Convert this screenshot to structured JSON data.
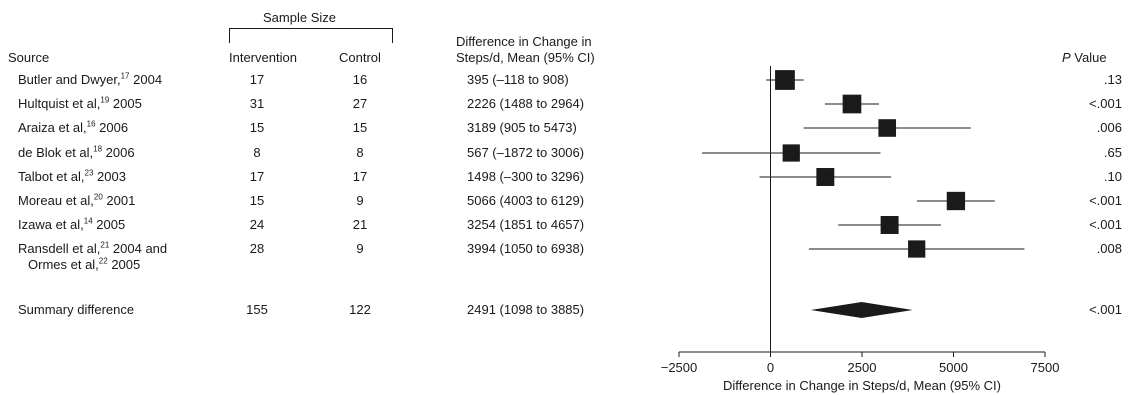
{
  "headers": {
    "sample_size": "Sample Size",
    "source": "Source",
    "intervention": "Intervention",
    "control": "Control",
    "diff_line1": "Difference in Change in",
    "diff_line2": "Steps/d, Mean (95% CI)",
    "p_italic": "P",
    "p_rest": " Value"
  },
  "rows": [
    {
      "name": "Butler and Dwyer,",
      "ref": "17",
      "year": " 2004",
      "intervention": "17",
      "control": "16",
      "diff_text": "395 (–118 to 908)",
      "p": ".13"
    },
    {
      "name": "Hultquist et al,",
      "ref": "19",
      "year": " 2005",
      "intervention": "31",
      "control": "27",
      "diff_text": "2226 (1488 to 2964)",
      "p": "<.001"
    },
    {
      "name": "Araiza et al,",
      "ref": "16",
      "year": " 2006",
      "intervention": "15",
      "control": "15",
      "diff_text": "3189 (905 to 5473)",
      "p": ".006"
    },
    {
      "name": "de Blok et al,",
      "ref": "18",
      "year": " 2006",
      "intervention": "8",
      "control": "8",
      "diff_text": "567 (–1872 to 3006)",
      "p": ".65"
    },
    {
      "name": "Talbot et al,",
      "ref": "23",
      "year": " 2003",
      "intervention": "17",
      "control": "17",
      "diff_text": "1498 (–300 to 3296)",
      "p": ".10"
    },
    {
      "name": "Moreau et al,",
      "ref": "20",
      "year": " 2001",
      "intervention": "15",
      "control": "9",
      "diff_text": "5066 (4003 to 6129)",
      "p": "<.001"
    },
    {
      "name": "Izawa et al,",
      "ref": "14",
      "year": " 2005",
      "intervention": "24",
      "control": "21",
      "diff_text": "3254 (1851 to 4657)",
      "p": "<.001"
    },
    {
      "name": "Ransdell et al,",
      "ref": "21",
      "year": " 2004 and",
      "name2": "Ormes et al,",
      "ref2": "22",
      "year2": " 2005",
      "intervention": "28",
      "control": "9",
      "diff_text": "3994 (1050 to 6938)",
      "p": ".008"
    }
  ],
  "summary": {
    "label": "Summary difference",
    "intervention": "155",
    "control": "122",
    "diff_text": "2491 (1098 to 3885)",
    "p": "<.001"
  },
  "chart_data": {
    "type": "forest",
    "xlabel": "Difference in Change in Steps/d, Mean (95% CI)",
    "xlim": [
      -2500,
      7500
    ],
    "xticks": [
      -2500,
      0,
      2500,
      5000,
      7500
    ],
    "xtick_labels": [
      "−2500",
      "0",
      "2500",
      "5000",
      "7500"
    ],
    "studies": [
      {
        "mean": 395,
        "lower": -118,
        "upper": 908,
        "weight": 16
      },
      {
        "mean": 2226,
        "lower": 1488,
        "upper": 2964,
        "weight": 13
      },
      {
        "mean": 3189,
        "lower": 905,
        "upper": 5473,
        "weight": 10
      },
      {
        "mean": 567,
        "lower": -1872,
        "upper": 3006,
        "weight": 9
      },
      {
        "mean": 1498,
        "lower": -300,
        "upper": 3296,
        "weight": 11
      },
      {
        "mean": 5066,
        "lower": 4003,
        "upper": 6129,
        "weight": 12
      },
      {
        "mean": 3254,
        "lower": 1851,
        "upper": 4657,
        "weight": 11
      },
      {
        "mean": 3994,
        "lower": 1050,
        "upper": 6938,
        "weight": 9
      }
    ],
    "summary": {
      "mean": 2491,
      "lower": 1098,
      "upper": 3885
    },
    "colors": {
      "marker": "#1a1a1a",
      "line": "#1a1a1a"
    }
  }
}
